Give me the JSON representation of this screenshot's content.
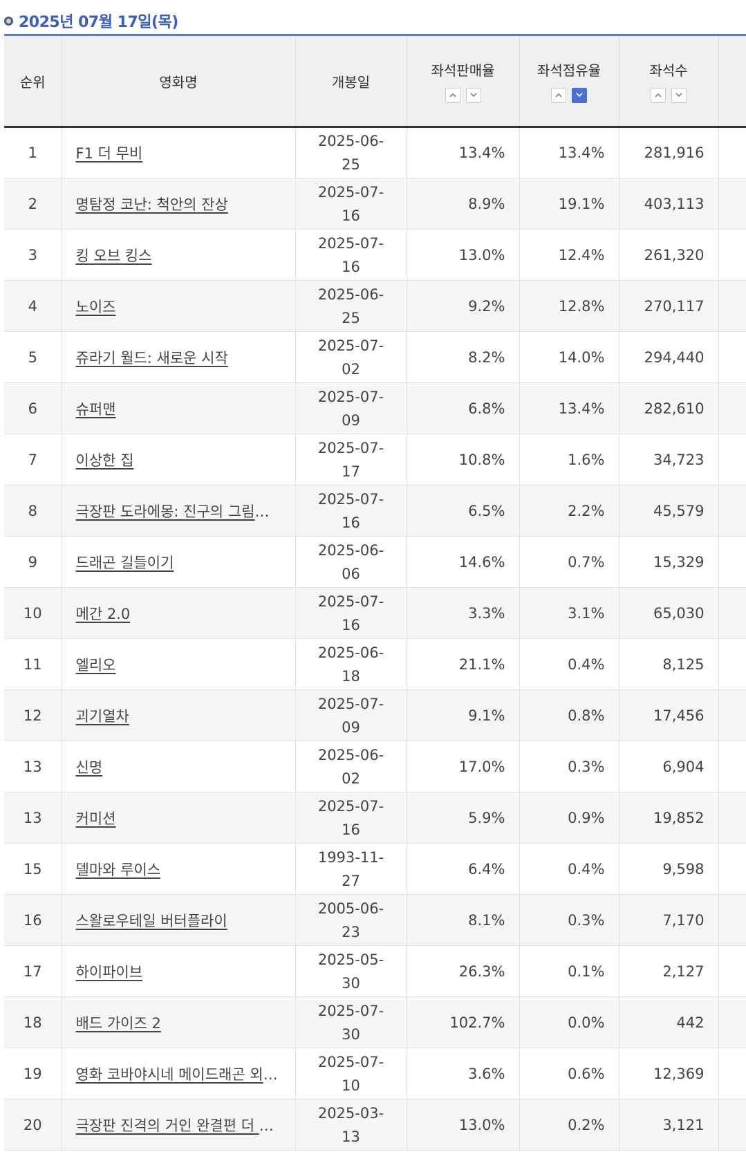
{
  "header": {
    "date": "2025년 07월 17일(목)"
  },
  "columns": {
    "rank": "순위",
    "title": "영화명",
    "release": "개봉일",
    "sales_rate": "좌석판매율",
    "share_rate": "좌석점유율",
    "seats": "좌석수"
  },
  "sort": {
    "up_icon": "chevron-up-icon",
    "down_icon": "chevron-down-icon",
    "active_column": "share_rate",
    "active_direction": "down"
  },
  "rows": [
    {
      "rank": "1",
      "title": "F1 더 무비",
      "release": "2025-06-25",
      "sales": "13.4%",
      "share": "13.4%",
      "seats": "281,916"
    },
    {
      "rank": "2",
      "title": "명탐정 코난: 척안의 잔상",
      "release": "2025-07-16",
      "sales": "8.9%",
      "share": "19.1%",
      "seats": "403,113"
    },
    {
      "rank": "3",
      "title": "킹 오브 킹스",
      "release": "2025-07-16",
      "sales": "13.0%",
      "share": "12.4%",
      "seats": "261,320"
    },
    {
      "rank": "4",
      "title": "노이즈",
      "release": "2025-06-25",
      "sales": "9.2%",
      "share": "12.8%",
      "seats": "270,117"
    },
    {
      "rank": "5",
      "title": "쥬라기 월드: 새로운 시작",
      "release": "2025-07-02",
      "sales": "8.2%",
      "share": "14.0%",
      "seats": "294,440"
    },
    {
      "rank": "6",
      "title": "슈퍼맨",
      "release": "2025-07-09",
      "sales": "6.8%",
      "share": "13.4%",
      "seats": "282,610"
    },
    {
      "rank": "7",
      "title": "이상한 집",
      "release": "2025-07-17",
      "sales": "10.8%",
      "share": "1.6%",
      "seats": "34,723"
    },
    {
      "rank": "8",
      "title": "극장판 도라에몽: 진구의 그림이야기",
      "release": "2025-07-16",
      "sales": "6.5%",
      "share": "2.2%",
      "seats": "45,579"
    },
    {
      "rank": "9",
      "title": "드래곤 길들이기",
      "release": "2025-06-06",
      "sales": "14.6%",
      "share": "0.7%",
      "seats": "15,329"
    },
    {
      "rank": "10",
      "title": "메간 2.0",
      "release": "2025-07-16",
      "sales": "3.3%",
      "share": "3.1%",
      "seats": "65,030"
    },
    {
      "rank": "11",
      "title": "엘리오",
      "release": "2025-06-18",
      "sales": "21.1%",
      "share": "0.4%",
      "seats": "8,125"
    },
    {
      "rank": "12",
      "title": "괴기열차",
      "release": "2025-07-09",
      "sales": "9.1%",
      "share": "0.8%",
      "seats": "17,456"
    },
    {
      "rank": "13",
      "title": "신명",
      "release": "2025-06-02",
      "sales": "17.0%",
      "share": "0.3%",
      "seats": "6,904"
    },
    {
      "rank": "13",
      "title": "커미션",
      "release": "2025-07-16",
      "sales": "5.9%",
      "share": "0.9%",
      "seats": "19,852"
    },
    {
      "rank": "15",
      "title": "델마와 루이스",
      "release": "1993-11-27",
      "sales": "6.4%",
      "share": "0.4%",
      "seats": "9,598"
    },
    {
      "rank": "16",
      "title": "스왈로우테일 버터플라이",
      "release": "2005-06-23",
      "sales": "8.1%",
      "share": "0.3%",
      "seats": "7,170"
    },
    {
      "rank": "17",
      "title": "하이파이브",
      "release": "2025-05-30",
      "sales": "26.3%",
      "share": "0.1%",
      "seats": "2,127"
    },
    {
      "rank": "18",
      "title": "배드 가이즈 2",
      "release": "2025-07-30",
      "sales": "102.7%",
      "share": "0.0%",
      "seats": "442"
    },
    {
      "rank": "19",
      "title": "영화 코바야시네 메이드래곤 외로…",
      "release": "2025-07-10",
      "sales": "3.6%",
      "share": "0.6%",
      "seats": "12,369"
    },
    {
      "rank": "20",
      "title": "극장판 진격의 거인 완결편 더 라스…",
      "release": "2025-03-13",
      "sales": "13.0%",
      "share": "0.2%",
      "seats": "3,121"
    }
  ]
}
